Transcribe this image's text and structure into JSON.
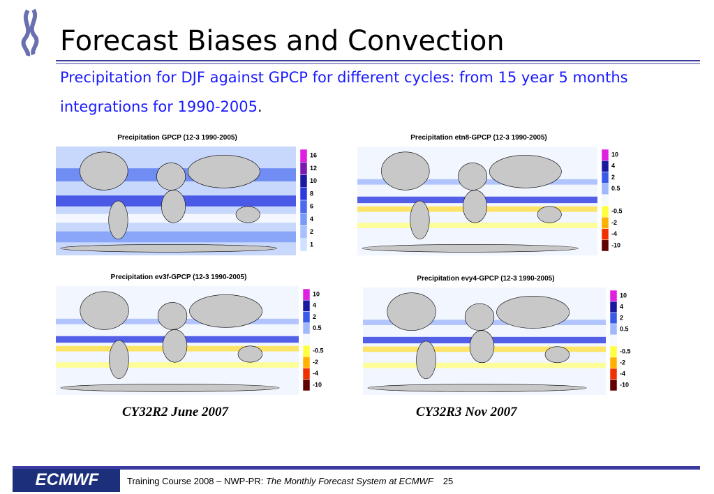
{
  "header": {
    "title": "Forecast Biases and Convection",
    "subtitle": "Precipitation for DJF against GPCP for different cycles: from 15 year 5 months integrations for 1990-2005",
    "subtitle_end": "."
  },
  "panels": [
    {
      "title": "Precipitation GPCP (12-3 1990-2005)",
      "legend": [
        "16",
        "12",
        "10",
        "8",
        "6",
        "4",
        "2",
        "1"
      ]
    },
    {
      "title": "Precipitation etn8-GPCP (12-3 1990-2005)",
      "legend": [
        "10",
        "4",
        "2",
        "0.5",
        "-0.5",
        "-2",
        "-4",
        "-10"
      ]
    },
    {
      "title": "Precipitation ev3f-GPCP (12-3 1990-2005)",
      "legend": [
        "10",
        "4",
        "2",
        "0.5",
        "-0.5",
        "-2",
        "-4",
        "-10"
      ]
    },
    {
      "title": "Precipitation evy4-GPCP (12-3 1990-2005)",
      "legend": [
        "10",
        "4",
        "2",
        "0.5",
        "-0.5",
        "-2",
        "-4",
        "-10"
      ]
    }
  ],
  "captions": [
    "CY32R2 June 2007",
    "CY32R3 Nov 2007"
  ],
  "footer": {
    "logo": "ECMWF",
    "text": "Training Course 2008 – NWP-PR: ",
    "italic": "The Monthly Forecast System at ECMWF",
    "page": "25"
  }
}
